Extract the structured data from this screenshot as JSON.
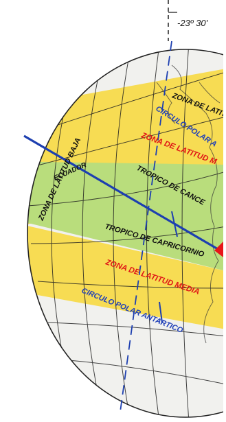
{
  "angle_label": "-23º 30'",
  "labels": {
    "zone_low": "ZONA DE LATITUD BAJA",
    "ecuador": "ECUADOR",
    "tropic_cancer": "TROPICO DE CANCE",
    "tropic_capricorn": "TROPICO DE CAPRICORNIO",
    "zone_mid_north": "ZONA DE LATITUD M",
    "zone_mid_south": "ZONA DE LATITUD MEDIA",
    "polar_arctic": "CIRCULO POLAR A",
    "polar_antarctic": "CIRCULO POLAR ANTARTICO",
    "zone_high_north": "ZONA DE LATIT"
  },
  "colors": {
    "low_zone": "#b9dd7c",
    "mid_zone": "#f7dc53",
    "polar_zone": "#f1f1ee",
    "axis_line": "#1d3fb0",
    "zone_text": "#e01616",
    "circle_text": "#1f3fb8",
    "red_marker": "#e8141a"
  }
}
